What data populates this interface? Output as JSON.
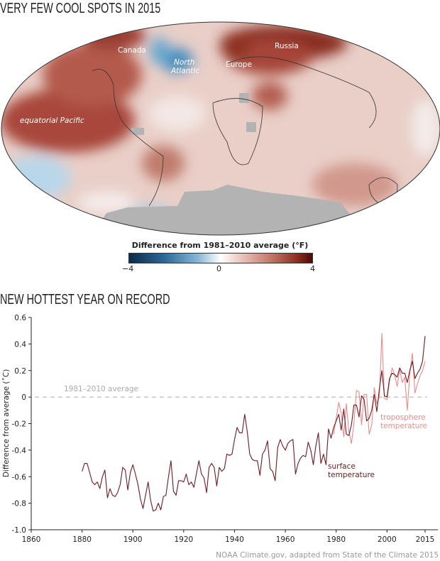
{
  "map": {
    "title": "VERY FEW COOL SPOTS IN 2015",
    "labels": {
      "canada": "Canada",
      "north_atlantic_1": "North",
      "north_atlantic_2": "Atlantic",
      "europe": "Europe",
      "russia": "Russia",
      "pacific": "equatorial Pacific"
    },
    "colorbar": {
      "title": "Difference from 1981–2010 average (°F)",
      "min_label": "−4",
      "mid_label": "0",
      "max_label": "4",
      "range": [
        -4,
        4
      ],
      "colors": [
        "#0b2a4a",
        "#ffffff",
        "#4c0a05"
      ]
    },
    "no_data_color": "#b3b3b3"
  },
  "chart_data": {
    "type": "line",
    "title": "NEW HOTTEST YEAR ON RECORD",
    "xlabel": "",
    "ylabel": "Difference from average (˚C)",
    "xlim": [
      1860,
      2015
    ],
    "ylim": [
      -1.0,
      0.6
    ],
    "xticks": [
      "1860",
      "1880",
      "1900",
      "1920",
      "1940",
      "1960",
      "1980",
      "2000",
      "2015"
    ],
    "yticks": [
      "0.6",
      "0.4",
      "0.2",
      "0",
      "-0.2",
      "-0.4",
      "-0.6",
      "-0.8",
      "-1.0"
    ],
    "reference_line": {
      "value": 0,
      "label": "1981–2010 average",
      "color": "#aaaaaa"
    },
    "grid": false,
    "series": [
      {
        "name": "surface temperature",
        "label_lines": [
          "surface",
          "temperature"
        ],
        "color": "#6e1a22",
        "start_year": 1880,
        "values": [
          -0.56,
          -0.5,
          -0.5,
          -0.57,
          -0.64,
          -0.66,
          -0.64,
          -0.69,
          -0.6,
          -0.55,
          -0.76,
          -0.69,
          -0.74,
          -0.75,
          -0.72,
          -0.66,
          -0.53,
          -0.55,
          -0.7,
          -0.57,
          -0.51,
          -0.58,
          -0.66,
          -0.77,
          -0.84,
          -0.74,
          -0.64,
          -0.78,
          -0.86,
          -0.85,
          -0.8,
          -0.85,
          -0.75,
          -0.74,
          -0.6,
          -0.48,
          -0.71,
          -0.74,
          -0.63,
          -0.63,
          -0.64,
          -0.58,
          -0.66,
          -0.64,
          -0.68,
          -0.58,
          -0.48,
          -0.58,
          -0.61,
          -0.72,
          -0.53,
          -0.5,
          -0.53,
          -0.67,
          -0.53,
          -0.56,
          -0.54,
          -0.43,
          -0.44,
          -0.43,
          -0.32,
          -0.23,
          -0.27,
          -0.27,
          -0.13,
          -0.26,
          -0.43,
          -0.47,
          -0.48,
          -0.48,
          -0.59,
          -0.43,
          -0.4,
          -0.33,
          -0.54,
          -0.56,
          -0.63,
          -0.38,
          -0.32,
          -0.37,
          -0.4,
          -0.35,
          -0.33,
          -0.32,
          -0.58,
          -0.5,
          -0.46,
          -0.44,
          -0.45,
          -0.34,
          -0.4,
          -0.51,
          -0.37,
          -0.27,
          -0.5,
          -0.43,
          -0.51,
          -0.24,
          -0.31,
          -0.23,
          -0.18,
          -0.13,
          -0.25,
          -0.09,
          -0.28,
          -0.29,
          -0.21,
          -0.06,
          -0.06,
          -0.15,
          0.01,
          -0.02,
          -0.18,
          -0.16,
          -0.1,
          0.02,
          -0.11,
          0.06,
          0.2,
          0.01,
          0.0,
          0.14,
          0.18,
          0.17,
          0.15,
          0.22,
          0.18,
          0.18,
          0.11,
          0.2,
          0.27,
          0.14,
          0.18,
          0.21,
          0.27,
          0.46
        ]
      },
      {
        "name": "troposphere temperature",
        "label_lines": [
          "troposphere",
          "temperature"
        ],
        "color": "#f08a8a",
        "start_year": 1979,
        "values": [
          -0.28,
          -0.16,
          -0.04,
          -0.12,
          -0.3,
          -0.05,
          -0.26,
          -0.35,
          -0.2,
          0.05,
          0.04,
          -0.21,
          0.02,
          0.02,
          -0.28,
          -0.21,
          0.07,
          -0.05,
          0.0,
          0.48,
          -0.01,
          -0.02,
          0.12,
          0.22,
          0.17,
          0.08,
          0.21,
          0.11,
          0.15,
          -0.1,
          0.18,
          0.33,
          0.03,
          0.1,
          0.16,
          0.2,
          0.27
        ]
      }
    ]
  },
  "source": "NOAA Climate.gov, adapted from State of the Climate 2015"
}
